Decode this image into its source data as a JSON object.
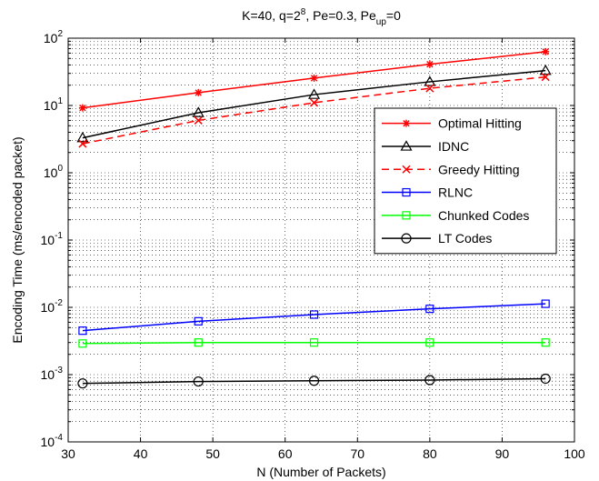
{
  "chart_data": {
    "type": "line",
    "title": {
      "prefix": "K=40, q=2",
      "q_exponent": "8",
      "middle": ", Pe=0.3, Pe",
      "subscript": "up",
      "suffix": "=0"
    },
    "xlabel": "N (Number of Packets)",
    "ylabel": "Encoding Time (ms/encoded packet)",
    "xlim": [
      30,
      100
    ],
    "ylim": [
      0.0001,
      100
    ],
    "yscale": "log",
    "grid": true,
    "legend_position": "right",
    "x_ticks": [
      "30",
      "40",
      "50",
      "60",
      "70",
      "80",
      "90",
      "100"
    ],
    "y_ticks": [
      {
        "base": "10",
        "exp": "-4"
      },
      {
        "base": "10",
        "exp": "-3"
      },
      {
        "base": "10",
        "exp": "-2"
      },
      {
        "base": "10",
        "exp": "-1"
      },
      {
        "base": "10",
        "exp": "0"
      },
      {
        "base": "10",
        "exp": "1"
      },
      {
        "base": "10",
        "exp": "2"
      }
    ],
    "x": [
      32,
      48,
      64,
      80,
      96
    ],
    "series": [
      {
        "name": "Optimal Hitting",
        "values": [
          9.2,
          15.5,
          25.5,
          41,
          63
        ],
        "color": "#ff0000",
        "marker": "star",
        "dash": "solid"
      },
      {
        "name": "IDNC",
        "values": [
          3.3,
          7.8,
          14.5,
          22.5,
          33
        ],
        "color": "#000000",
        "marker": "triangle",
        "dash": "solid"
      },
      {
        "name": "Greedy Hitting",
        "values": [
          2.7,
          6.0,
          11.0,
          18.0,
          26.5
        ],
        "color": "#ff0000",
        "marker": "x",
        "dash": "dashed"
      },
      {
        "name": "RLNC",
        "values": [
          0.0045,
          0.0062,
          0.0078,
          0.0095,
          0.0113
        ],
        "color": "#0000ff",
        "marker": "square",
        "dash": "solid"
      },
      {
        "name": "Chunked Codes",
        "values": [
          0.0029,
          0.003,
          0.003,
          0.003,
          0.003
        ],
        "color": "#00ff00",
        "marker": "square",
        "dash": "solid"
      },
      {
        "name": "LT Codes",
        "values": [
          0.00074,
          0.00079,
          0.00081,
          0.00083,
          0.00087
        ],
        "color": "#000000",
        "marker": "circle",
        "dash": "solid"
      }
    ]
  }
}
